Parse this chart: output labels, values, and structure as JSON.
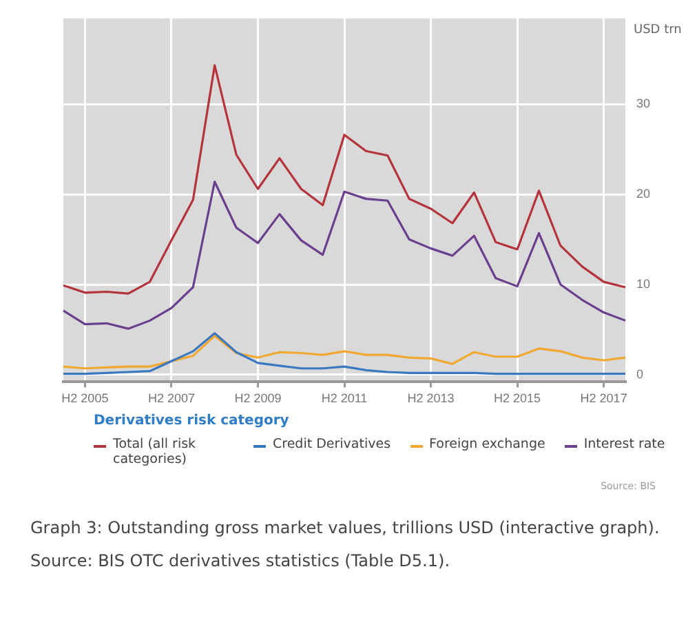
{
  "chart_data": {
    "type": "line",
    "ylabel": "USD trn",
    "legend_title": "Derivatives risk category",
    "categories": [
      null,
      "H2 2005",
      null,
      null,
      null,
      "H2 2007",
      null,
      null,
      null,
      "H2 2009",
      null,
      null,
      null,
      "H2 2011",
      null,
      null,
      null,
      "H2 2013",
      null,
      null,
      null,
      "H2 2015",
      null,
      null,
      null,
      "H2 2017",
      null
    ],
    "series": [
      {
        "name": "Total (all risk categories)",
        "color": "#b5333a",
        "values": [
          9.9,
          9.1,
          9.2,
          9.0,
          10.3,
          14.9,
          19.4,
          34.3,
          24.4,
          20.6,
          24.0,
          20.6,
          18.8,
          26.6,
          24.8,
          24.3,
          19.5,
          18.4,
          16.8,
          20.2,
          14.7,
          13.9,
          20.4,
          14.3,
          12.0,
          10.3,
          9.7
        ]
      },
      {
        "name": "Credit Derivatives",
        "color": "#3a78c0",
        "values": [
          0.1,
          0.1,
          0.2,
          0.3,
          0.4,
          1.5,
          2.6,
          4.6,
          2.5,
          1.3,
          1.0,
          0.7,
          0.7,
          0.9,
          0.5,
          0.3,
          0.2,
          0.2,
          0.2,
          0.2,
          0.1,
          0.1,
          0.1,
          0.1,
          0.1,
          0.1,
          0.1
        ]
      },
      {
        "name": "Foreign exchange",
        "color": "#f0a830",
        "values": [
          0.9,
          0.7,
          0.8,
          0.9,
          0.9,
          1.5,
          2.1,
          4.3,
          2.4,
          1.9,
          2.5,
          2.4,
          2.2,
          2.6,
          2.2,
          2.2,
          1.9,
          1.8,
          1.2,
          2.5,
          2.0,
          2.0,
          2.9,
          2.6,
          1.9,
          1.6,
          1.9
        ]
      },
      {
        "name": "Interest rate",
        "color": "#6a3f8e",
        "values": [
          7.1,
          5.6,
          5.7,
          5.1,
          6.0,
          7.4,
          9.7,
          21.4,
          16.3,
          14.6,
          17.8,
          14.9,
          13.3,
          20.3,
          19.5,
          19.3,
          15.0,
          14.0,
          13.2,
          15.4,
          10.7,
          9.8,
          15.7,
          10.0,
          8.3,
          6.9,
          6.0
        ]
      }
    ],
    "ylim": [
      -0.8,
      39.5
    ],
    "yticks": [
      0,
      10,
      20,
      30
    ],
    "grid": true,
    "legend": "bottom",
    "marker": "none",
    "line_style": "solid",
    "annotations": [
      "Source: BIS",
      "Graph 3: Outstanding gross market values, trillions USD (interactive graph).",
      "Source: BIS OTC derivatives statistics (Table D5.1)."
    ]
  }
}
